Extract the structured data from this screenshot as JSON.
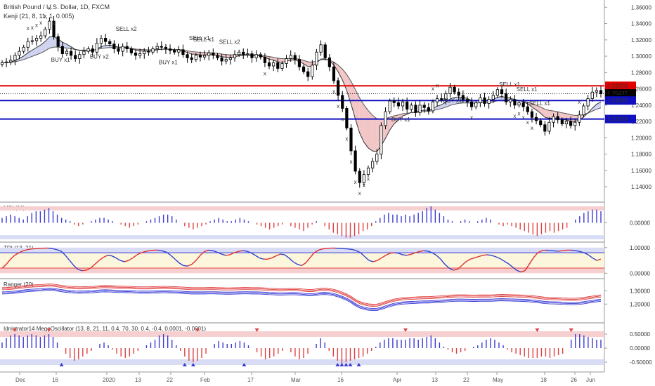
{
  "main_title": "British Pound / U.S. Dollar, 1D, FXCM",
  "kenji_label": "Kenji (21, 8, 11, 1, 0.005)",
  "colors": {
    "up": "#ffffff",
    "down": "#000000",
    "red_level": "#e00000",
    "blue_level": "#1010c0",
    "price_tag": "#000000",
    "sell": "#e85050",
    "buy": "#5a5af0",
    "fill_red": "#f2c6c6",
    "fill_blue": "#cfd3f0"
  },
  "chart_data": {
    "type": "candlestick",
    "main": {
      "title": "British Pound / U.S. Dollar, 1D, FXCM",
      "y_ticks": [
        "1.36000",
        "1.34000",
        "1.32000",
        "1.30000",
        "1.28000",
        "1.26000",
        "1.24000",
        "1.22000",
        "1.20000",
        "1.18000",
        "1.16000",
        "1.14000"
      ],
      "ylim": [
        1.128,
        1.362
      ],
      "price_tags": [
        {
          "value": 1.2637,
          "label": "1.26370",
          "color": "#e00000"
        },
        {
          "value": 1.25437,
          "label": "1.25437",
          "color": "#000000"
        },
        {
          "value": 1.2475,
          "label": "15:49:25",
          "color": "#000000"
        },
        {
          "value": 1.24569,
          "label": "1.24569",
          "color": "#1010c0"
        },
        {
          "value": 1.223,
          "label": "1.22308",
          "color": "#1010c0"
        }
      ],
      "levels": [
        {
          "value": 1.2637,
          "color": "#e00000"
        },
        {
          "value": 1.24569,
          "color": "#1010c0"
        },
        {
          "value": 1.223,
          "color": "#1010c0"
        }
      ],
      "closes": [
        1.292,
        1.293,
        1.295,
        1.301,
        1.306,
        1.311,
        1.318,
        1.319,
        1.322,
        1.325,
        1.333,
        1.343,
        1.324,
        1.312,
        1.303,
        1.306,
        1.301,
        1.297,
        1.302,
        1.306,
        1.309,
        1.305,
        1.316,
        1.322,
        1.318,
        1.315,
        1.309,
        1.306,
        1.312,
        1.309,
        1.304,
        1.301,
        1.303,
        1.306,
        1.305,
        1.309,
        1.312,
        1.311,
        1.309,
        1.307,
        1.305,
        1.308,
        1.302,
        1.298,
        1.296,
        1.301,
        1.299,
        1.301,
        1.304,
        1.301,
        1.298,
        1.294,
        1.296,
        1.298,
        1.302,
        1.305,
        1.302,
        1.303,
        1.298,
        1.302,
        1.299,
        1.292,
        1.288,
        1.292,
        1.285,
        1.291,
        1.297,
        1.301,
        1.296,
        1.287,
        1.281,
        1.275,
        1.289,
        1.305,
        1.314,
        1.298,
        1.287,
        1.27,
        1.252,
        1.236,
        1.212,
        1.184,
        1.159,
        1.145,
        1.155,
        1.163,
        1.171,
        1.18,
        1.215,
        1.232,
        1.245,
        1.243,
        1.239,
        1.244,
        1.235,
        1.24,
        1.231,
        1.24,
        1.237,
        1.233,
        1.244,
        1.248,
        1.247,
        1.254,
        1.262,
        1.256,
        1.252,
        1.247,
        1.244,
        1.238,
        1.243,
        1.249,
        1.242,
        1.247,
        1.252,
        1.259,
        1.254,
        1.244,
        1.247,
        1.24,
        1.243,
        1.238,
        1.232,
        1.225,
        1.221,
        1.216,
        1.208,
        1.219,
        1.226,
        1.222,
        1.217,
        1.22,
        1.215,
        1.219,
        1.228,
        1.239,
        1.248,
        1.256,
        1.258,
        1.254
      ],
      "sell_labels": [
        "SELL x2",
        "SELL x1",
        "SELL x1",
        "SELL x2",
        "SELL x1",
        "SELL x1",
        "SELL x1"
      ],
      "buy_labels": [
        "BUY x1",
        "BUY x2",
        "BUY x1",
        "BUY x1",
        "BUY x1"
      ],
      "cross_marks": "x"
    },
    "x_ticks": [
      "Dec",
      "16",
      "2020",
      "13",
      "22",
      "Feb",
      "17",
      "Mar",
      "16",
      "Apr",
      "13",
      "22",
      "May",
      "18",
      "26",
      "Jun"
    ],
    "panels": [
      {
        "name": "MSI (10)",
        "title": "MSI (10)",
        "ticks": [
          "0.00000"
        ],
        "ylim": [
          -1,
          1
        ],
        "values": [
          0.3,
          0.4,
          0.5,
          0.4,
          0.3,
          0.2,
          0.4,
          0.6,
          0.7,
          0.7,
          0.8,
          0.9,
          0.7,
          0.5,
          0.3,
          0.2,
          0.1,
          -0.1,
          -0.2,
          -0.1,
          0.0,
          0.1,
          0.2,
          0.3,
          0.3,
          0.2,
          0.1,
          0.0,
          -0.1,
          -0.2,
          -0.3,
          -0.2,
          -0.1,
          0.0,
          0.1,
          0.2,
          0.3,
          0.4,
          0.5,
          0.5,
          0.4,
          0.2,
          0.0,
          -0.2,
          -0.3,
          -0.4,
          -0.3,
          -0.2,
          -0.1,
          0.1,
          0.2,
          0.3,
          0.2,
          0.1,
          0.1,
          0.2,
          0.3,
          0.2,
          0.1,
          0.0,
          -0.1,
          -0.2,
          -0.3,
          -0.4,
          -0.3,
          -0.2,
          -0.1,
          0.0,
          -0.2,
          -0.3,
          -0.4,
          -0.5,
          -0.3,
          -0.1,
          0.1,
          0.0,
          -0.2,
          -0.4,
          -0.6,
          -0.7,
          -0.8,
          -0.9,
          -0.9,
          -0.8,
          -0.7,
          -0.5,
          -0.4,
          -0.2,
          0.1,
          0.3,
          0.5,
          0.6,
          0.5,
          0.5,
          0.4,
          0.5,
          0.4,
          0.5,
          0.6,
          0.7,
          0.9,
          1.0,
          0.8,
          0.6,
          0.4,
          0.2,
          0.1,
          0.0,
          0.1,
          0.2,
          0.1,
          0.0,
          0.1,
          0.2,
          0.3,
          0.2,
          0.0,
          -0.1,
          -0.2,
          -0.1,
          -0.2,
          -0.3,
          -0.4,
          -0.5,
          -0.6,
          -0.7,
          -0.8,
          -0.7,
          -0.6,
          -0.5,
          -0.6,
          -0.5,
          -0.4,
          -0.3,
          0.0,
          0.2,
          0.4,
          0.6,
          0.7,
          0.8,
          0.8,
          0.7
        ]
      },
      {
        "name": "TDI",
        "title": "TDI (13, 21)",
        "ticks": [
          "1.00000",
          "0.00000"
        ],
        "ylim": [
          -0.1,
          1.05
        ],
        "values": [
          0.2,
          0.35,
          0.55,
          0.7,
          0.8,
          0.88,
          0.92,
          0.95,
          0.96,
          0.97,
          0.98,
          0.98,
          0.96,
          0.92,
          0.86,
          0.7,
          0.5,
          0.3,
          0.15,
          0.1,
          0.12,
          0.2,
          0.35,
          0.5,
          0.62,
          0.7,
          0.68,
          0.6,
          0.5,
          0.45,
          0.5,
          0.6,
          0.72,
          0.8,
          0.85,
          0.88,
          0.9,
          0.9,
          0.87,
          0.82,
          0.7,
          0.55,
          0.4,
          0.3,
          0.28,
          0.35,
          0.5,
          0.7,
          0.85,
          0.9,
          0.88,
          0.82,
          0.75,
          0.7,
          0.72,
          0.8,
          0.85,
          0.88,
          0.86,
          0.8,
          0.7,
          0.6,
          0.55,
          0.55,
          0.6,
          0.68,
          0.75,
          0.72,
          0.6,
          0.45,
          0.35,
          0.3,
          0.4,
          0.6,
          0.8,
          0.9,
          0.95,
          0.97,
          0.98,
          0.98,
          0.97,
          0.96,
          0.95,
          0.93,
          0.88,
          0.8,
          0.65,
          0.5,
          0.45,
          0.5,
          0.6,
          0.7,
          0.78,
          0.8,
          0.78,
          0.72,
          0.7,
          0.74,
          0.8,
          0.85,
          0.88,
          0.86,
          0.8,
          0.7,
          0.55,
          0.35,
          0.2,
          0.12,
          0.15,
          0.3,
          0.45,
          0.55,
          0.6,
          0.65,
          0.7,
          0.72,
          0.7,
          0.65,
          0.58,
          0.48,
          0.38,
          0.25,
          0.12,
          0.05,
          0.1,
          0.35,
          0.6,
          0.8,
          0.88,
          0.9,
          0.88,
          0.87,
          0.86,
          0.88,
          0.9,
          0.9,
          0.88,
          0.85,
          0.8,
          0.72,
          0.6,
          0.5,
          0.55
        ]
      },
      {
        "name": "Ranger (20)",
        "title": "Ranger (20)",
        "ticks": [
          "1.30000",
          "1.20000"
        ],
        "ylim": [
          1.08,
          1.36
        ],
        "values": [
          1.3,
          1.301,
          1.303,
          1.306,
          1.31,
          1.314,
          1.318,
          1.32,
          1.322,
          1.323,
          1.326,
          1.328,
          1.326,
          1.321,
          1.316,
          1.312,
          1.309,
          1.307,
          1.306,
          1.307,
          1.308,
          1.309,
          1.312,
          1.315,
          1.316,
          1.315,
          1.313,
          1.311,
          1.311,
          1.31,
          1.309,
          1.307,
          1.306,
          1.306,
          1.306,
          1.307,
          1.308,
          1.309,
          1.309,
          1.308,
          1.307,
          1.306,
          1.304,
          1.302,
          1.3,
          1.3,
          1.3,
          1.3,
          1.301,
          1.301,
          1.3,
          1.299,
          1.298,
          1.298,
          1.299,
          1.3,
          1.301,
          1.301,
          1.3,
          1.3,
          1.299,
          1.297,
          1.295,
          1.294,
          1.292,
          1.292,
          1.293,
          1.294,
          1.294,
          1.292,
          1.289,
          1.286,
          1.286,
          1.29,
          1.295,
          1.296,
          1.293,
          1.287,
          1.278,
          1.266,
          1.252,
          1.234,
          1.212,
          1.195,
          1.185,
          1.178,
          1.175,
          1.176,
          1.184,
          1.195,
          1.205,
          1.214,
          1.219,
          1.224,
          1.226,
          1.228,
          1.229,
          1.231,
          1.232,
          1.232,
          1.234,
          1.236,
          1.238,
          1.24,
          1.243,
          1.245,
          1.246,
          1.246,
          1.245,
          1.244,
          1.244,
          1.245,
          1.245,
          1.245,
          1.246,
          1.248,
          1.249,
          1.248,
          1.247,
          1.246,
          1.245,
          1.244,
          1.242,
          1.239,
          1.236,
          1.232,
          1.228,
          1.226,
          1.225,
          1.224,
          1.222,
          1.221,
          1.22,
          1.22,
          1.222,
          1.226,
          1.231,
          1.236,
          1.241,
          1.245
        ]
      },
      {
        "name": "Idnistrator14 MegaOscillator",
        "title": "Idnistrator14 MegaOscillator (13, 8, 21, 11, 0.4, 70, 30, 0.4, -0.4, 0.0001, -0.0001)",
        "ticks": [
          "0.50000",
          "0.00000",
          "-0.50000"
        ],
        "ylim": [
          -0.75,
          0.75
        ],
        "values": [
          0.2,
          0.35,
          0.45,
          0.5,
          0.45,
          0.4,
          0.45,
          0.5,
          0.45,
          0.4,
          0.45,
          0.5,
          0.4,
          0.2,
          0.0,
          -0.2,
          -0.35,
          -0.45,
          -0.4,
          -0.3,
          -0.2,
          -0.1,
          0.0,
          0.15,
          0.2,
          0.1,
          -0.05,
          -0.2,
          -0.3,
          -0.35,
          -0.3,
          -0.2,
          -0.1,
          0.0,
          0.1,
          0.2,
          0.3,
          0.45,
          0.5,
          0.45,
          0.3,
          0.1,
          -0.1,
          -0.3,
          -0.45,
          -0.5,
          -0.45,
          -0.35,
          -0.2,
          0.0,
          0.15,
          0.25,
          0.2,
          0.15,
          0.15,
          0.2,
          0.25,
          0.2,
          0.1,
          0.0,
          -0.15,
          -0.3,
          -0.4,
          -0.35,
          -0.3,
          -0.2,
          -0.1,
          0.0,
          -0.15,
          -0.3,
          -0.4,
          -0.35,
          -0.2,
          0.0,
          0.15,
          0.35,
          0.2,
          -0.1,
          -0.3,
          -0.45,
          -0.55,
          -0.5,
          -0.45,
          -0.4,
          -0.35,
          -0.3,
          -0.2,
          -0.1,
          0.05,
          0.2,
          0.3,
          0.35,
          0.35,
          0.3,
          0.3,
          0.3,
          0.35,
          0.35,
          0.3,
          0.35,
          0.4,
          0.45,
          0.35,
          0.2,
          0.05,
          -0.05,
          -0.15,
          -0.2,
          -0.15,
          -0.1,
          0.0,
          0.05,
          0.1,
          0.2,
          0.3,
          0.35,
          0.3,
          0.2,
          0.1,
          -0.05,
          -0.15,
          -0.2,
          -0.25,
          -0.3,
          -0.35,
          -0.35,
          -0.35,
          -0.3,
          -0.3,
          -0.35,
          -0.3,
          -0.25,
          -0.2,
          0.0,
          0.3,
          0.5,
          0.5,
          0.45,
          0.4,
          0.35,
          0.3,
          0.3
        ]
      }
    ]
  }
}
